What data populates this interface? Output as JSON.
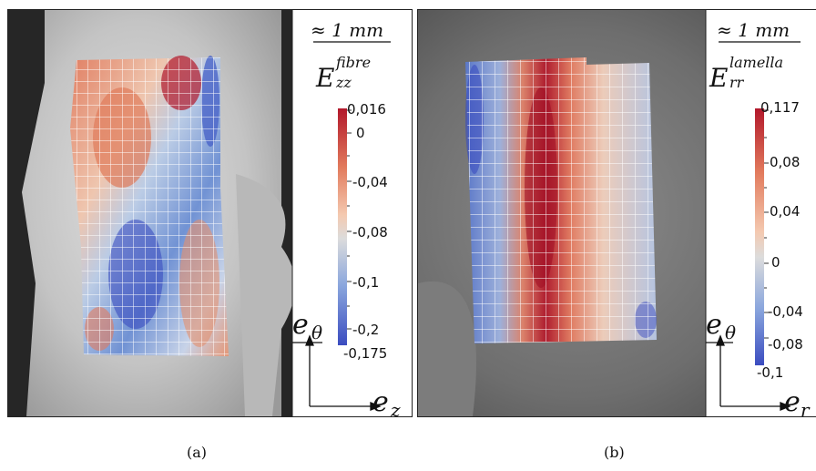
{
  "figure": {
    "panel_a": {
      "caption": "(a)",
      "scale_label": "≈ 1 mm",
      "strain_symbol": "E",
      "strain_sub": "zz",
      "strain_sup": "fibre",
      "colorbar_ticks": [
        "0,016",
        "0",
        "-0,04",
        "-0,08",
        "-0,1",
        "-0,2",
        "-0,175"
      ],
      "axis_vertical": "e",
      "axis_vertical_sub": "θ",
      "axis_horizontal": "e",
      "axis_horizontal_sub": "z"
    },
    "panel_b": {
      "caption": "(b)",
      "scale_label": "≈ 1 mm",
      "strain_symbol": "E",
      "strain_sub": "rr",
      "strain_sup": "lamella",
      "colorbar_ticks": [
        "0,117",
        "0,08",
        "0,04",
        "0",
        "-0,04",
        "-0,08",
        "-0,1"
      ],
      "axis_vertical": "e",
      "axis_vertical_sub": "θ",
      "axis_horizontal": "e",
      "axis_horizontal_sub": "r"
    }
  },
  "colors": {
    "red": "#b2182b",
    "white": "#dcdcdc",
    "blue": "#3b4cc0"
  }
}
